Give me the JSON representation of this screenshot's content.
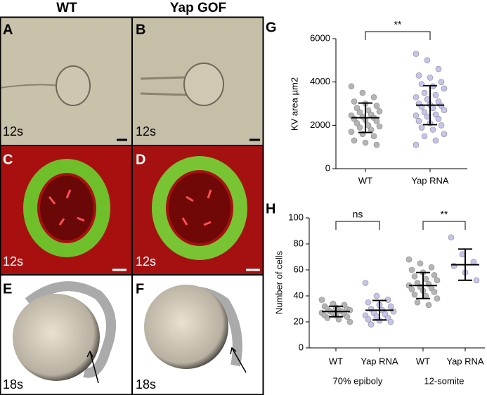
{
  "columns": [
    "WT",
    "Yap GOF"
  ],
  "panels": [
    {
      "letter": "A",
      "stage": "12s"
    },
    {
      "letter": "B",
      "stage": "12s"
    },
    {
      "letter": "C",
      "stage": "12s"
    },
    {
      "letter": "D",
      "stage": "12s"
    },
    {
      "letter": "E",
      "stage": "18s"
    },
    {
      "letter": "F",
      "stage": "18s"
    }
  ],
  "chart_data": [
    {
      "type": "scatter",
      "letter": "G",
      "ylabel": "KV area µm2",
      "categories": [
        "WT",
        "Yap RNA"
      ],
      "ylim": [
        0,
        6000
      ],
      "yticks": [
        0,
        2000,
        4000,
        6000
      ],
      "point_colors": [
        "#b5b5b5",
        "#c4c4ec"
      ],
      "annotations": [
        "**"
      ],
      "points": [
        [
          3800,
          3500,
          3300,
          3100,
          3000,
          2900,
          2800,
          2700,
          2650,
          2600,
          2500,
          2450,
          2400,
          2350,
          2300,
          2250,
          2200,
          2100,
          2000,
          1950,
          1900,
          1800,
          1700,
          1600,
          1500,
          1300,
          1200,
          1100
        ],
        [
          5300,
          5000,
          4600,
          4300,
          4200,
          4000,
          3900,
          3800,
          3700,
          3500,
          3400,
          3300,
          3200,
          3100,
          3000,
          2950,
          2900,
          2850,
          2800,
          2700,
          2600,
          2500,
          2450,
          2400,
          2300,
          2200,
          2100,
          2000,
          1900,
          1800,
          1600,
          1500,
          1300,
          1100
        ]
      ],
      "means": [
        2350,
        2930
      ],
      "sd": [
        680,
        900
      ]
    },
    {
      "type": "scatter",
      "letter": "H",
      "ylabel": "Number of cells",
      "categories": [
        "WT",
        "Yap RNA",
        "WT",
        "Yap RNA"
      ],
      "groups": [
        "70% epiboly",
        "12-somite"
      ],
      "ylim": [
        0,
        100
      ],
      "yticks": [
        0,
        20,
        40,
        60,
        80,
        100
      ],
      "point_colors": [
        "#b5b5b5",
        "#c4c4ec",
        "#b5b5b5",
        "#c4c4ec"
      ],
      "annotations": [
        "ns",
        "**"
      ],
      "points": [
        [
          37,
          34,
          33,
          32,
          31,
          30,
          30,
          29,
          29,
          28,
          28,
          27,
          27,
          26,
          25,
          25,
          24,
          23,
          22,
          20
        ],
        [
          50,
          40,
          37,
          35,
          33,
          32,
          30,
          29,
          28,
          27,
          26,
          25,
          24,
          23,
          22,
          21,
          20,
          18
        ],
        [
          68,
          65,
          62,
          60,
          58,
          56,
          55,
          53,
          52,
          50,
          49,
          48,
          47,
          46,
          45,
          44,
          43,
          41,
          40,
          38,
          35,
          33
        ],
        [
          85,
          72,
          66,
          63,
          58,
          52
        ]
      ],
      "means": [
        28,
        29,
        48,
        64
      ],
      "sd": [
        4,
        7.5,
        10,
        12
      ]
    }
  ]
}
